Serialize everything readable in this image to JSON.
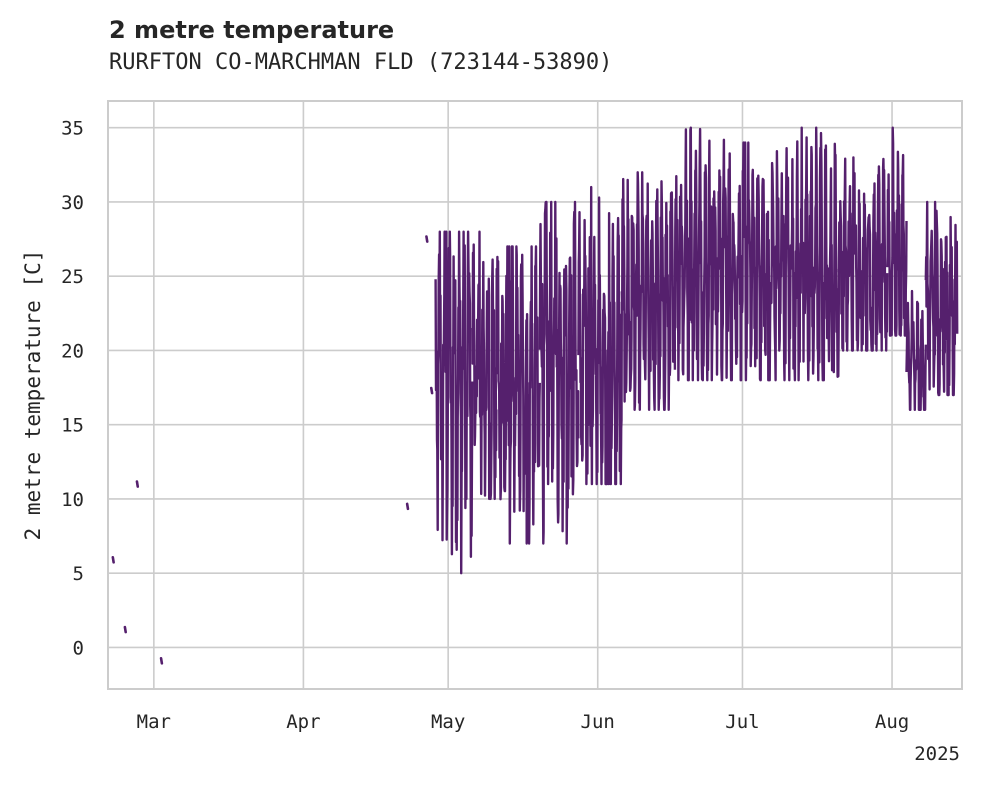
{
  "chart_data": {
    "type": "line",
    "title": "2 metre temperature",
    "subtitle": "RURFTON CO-MARCHMAN FLD (723144-53890)",
    "ylabel": "2 metre temperature [C]",
    "xlabel": "",
    "x_year_label": "2025",
    "ylim": [
      -2.8,
      36.8
    ],
    "xlim_days": [
      -9.5,
      167.5
    ],
    "grid": true,
    "line_color": "#55206d",
    "y_ticks": [
      0,
      5,
      10,
      15,
      20,
      25,
      30,
      35
    ],
    "x_ticks": [
      {
        "day": 0,
        "label": "Mar"
      },
      {
        "day": 31,
        "label": "Apr"
      },
      {
        "day": 61,
        "label": "May"
      },
      {
        "day": 92,
        "label": "Jun"
      },
      {
        "day": 122,
        "label": "Jul"
      },
      {
        "day": 153,
        "label": "Aug"
      }
    ],
    "isolated_points": [
      {
        "day": -8.5,
        "value": 5.9
      },
      {
        "day": -6.0,
        "value": 1.2
      },
      {
        "day": -3.5,
        "value": 11.0
      },
      {
        "day": 1.5,
        "value": -0.9
      },
      {
        "day": 52.5,
        "value": 9.5
      },
      {
        "day": 56.5,
        "value": 27.5
      },
      {
        "day": 57.5,
        "value": 17.3
      }
    ],
    "segments": [
      {
        "start_day": 58.4,
        "end_day": 66.0,
        "min": 5,
        "max": 28,
        "mean": 18.5
      },
      {
        "start_day": 66.0,
        "end_day": 71.0,
        "min": 10,
        "max": 28,
        "mean": 18.5
      },
      {
        "start_day": 71.0,
        "end_day": 80.0,
        "min": 7,
        "max": 27,
        "mean": 17.5
      },
      {
        "start_day": 80.0,
        "end_day": 88.0,
        "min": 7,
        "max": 30,
        "mean": 20
      },
      {
        "start_day": 88.0,
        "end_day": 97.0,
        "min": 11,
        "max": 31,
        "mean": 19
      },
      {
        "start_day": 97.0,
        "end_day": 108.0,
        "min": 16,
        "max": 32,
        "mean": 23
      },
      {
        "start_day": 108.0,
        "end_day": 119.0,
        "min": 18,
        "max": 35,
        "mean": 26
      },
      {
        "start_day": 119.0,
        "end_day": 131.0,
        "min": 18,
        "max": 34,
        "mean": 25.5
      },
      {
        "start_day": 131.0,
        "end_day": 142.0,
        "min": 18,
        "max": 35,
        "mean": 25.5
      },
      {
        "start_day": 142.0,
        "end_day": 152.0,
        "min": 20,
        "max": 33,
        "mean": 25.5
      },
      {
        "start_day": 152.0,
        "end_day": 156.0,
        "min": 21,
        "max": 35,
        "mean": 26
      },
      {
        "start_day": 156.0,
        "end_day": 160.0,
        "min": 16,
        "max": 24,
        "mean": 19
      },
      {
        "start_day": 160.0,
        "end_day": 166.5,
        "min": 17,
        "max": 30,
        "mean": 22.5
      }
    ]
  },
  "colors": {
    "grid": "#cccccc",
    "frame": "#cccccc",
    "text": "#262626",
    "series": "#55206d"
  }
}
